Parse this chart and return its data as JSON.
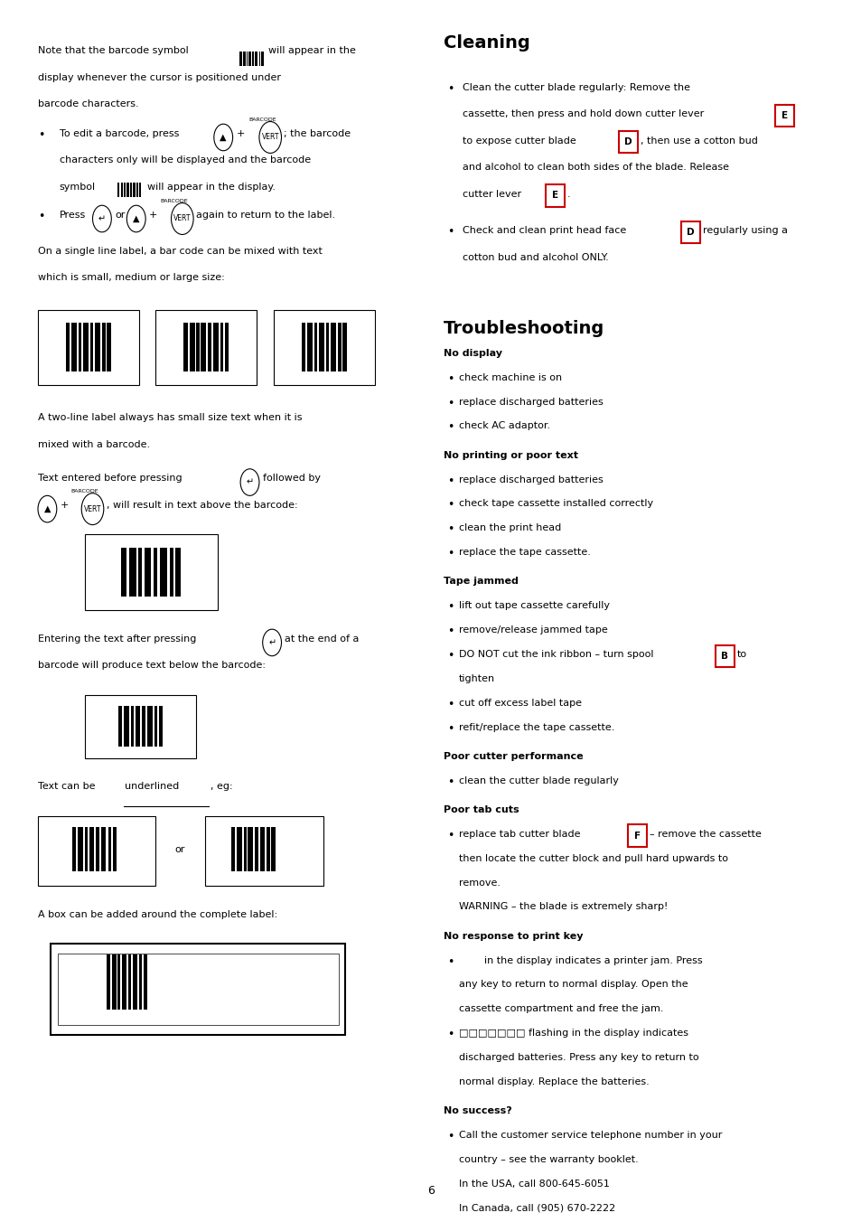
{
  "bg_color": "#ffffff",
  "text_color": "#1a1a1a",
  "page_number": "6",
  "ts_sections": [
    {
      "heading": "No display",
      "items": [
        "check machine is on",
        "replace discharged batteries",
        "check AC adaptor."
      ]
    },
    {
      "heading": "No printing or poor text",
      "items": [
        "replace discharged batteries",
        "check tape cassette installed correctly",
        "clean the print head",
        "replace the tape cassette."
      ]
    },
    {
      "heading": "Tape jammed",
      "items": [
        "lift out tape cassette carefully",
        "remove/release jammed tape",
        "DO NOT cut the ink ribbon – turn spool B to\ntighten",
        "cut off excess label tape",
        "refit/replace the tape cassette."
      ]
    },
    {
      "heading": "Poor cutter performance",
      "items": [
        "clean the cutter blade regularly"
      ]
    },
    {
      "heading": "Poor tab cuts",
      "items": [
        "replace tab cutter blade F – remove the cassette\nthen locate the cutter block and pull hard upwards to\nremove.\nWARNING – the blade is extremely sharp!"
      ]
    },
    {
      "heading": "No response to print key",
      "items": [
        "        in the display indicates a printer jam. Press\nany key to return to normal display. Open the\ncassette compartment and free the jam.",
        "□□□□□□□ flashing in the display indicates\ndischarged batteries. Press any key to return to\nnormal display. Replace the batteries."
      ]
    },
    {
      "heading": "No success?",
      "items_plain": [
        "Call the customer service telephone number in your\ncountry – see the warranty booklet.\nIn the USA, call 800-645-6051\nIn Canada, call (905) 670-2222"
      ]
    }
  ]
}
